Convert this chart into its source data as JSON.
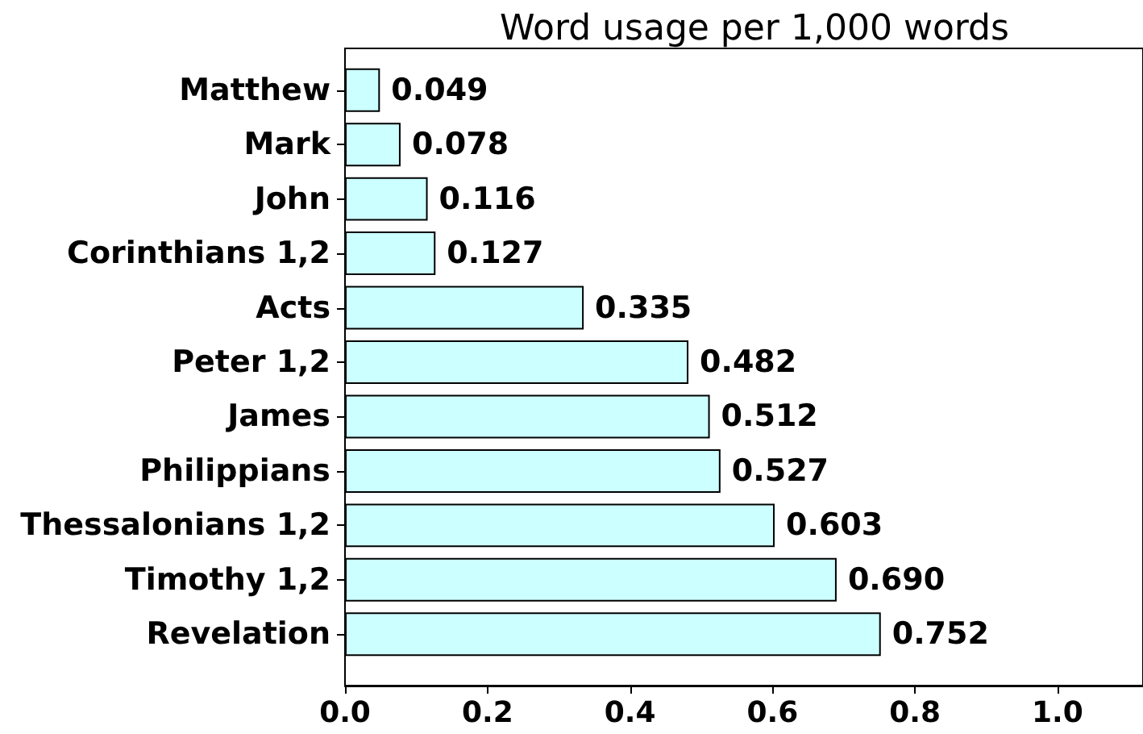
{
  "chart_data": {
    "type": "bar",
    "orientation": "horizontal",
    "title": "Word usage per 1,000 words",
    "categories": [
      "Matthew",
      "Mark",
      "John",
      "Corinthians 1,2",
      "Acts",
      "Peter 1,2",
      "James",
      "Philippians",
      "Thessalonians 1,2",
      "Timothy 1,2",
      "Revelation"
    ],
    "values": [
      0.049,
      0.078,
      0.116,
      0.127,
      0.335,
      0.482,
      0.512,
      0.527,
      0.603,
      0.69,
      0.752
    ],
    "value_labels": [
      "0.049",
      "0.078",
      "0.116",
      "0.127",
      "0.335",
      "0.482",
      "0.512",
      "0.527",
      "0.603",
      "0.690",
      "0.752"
    ],
    "color": "#ccffff",
    "xlim": [
      0,
      1.12
    ],
    "xticks": [
      {
        "value": 0,
        "label": "0.0"
      },
      {
        "value": 0.2,
        "label": "0.2"
      },
      {
        "value": 0.4,
        "label": "0.4"
      },
      {
        "value": 0.6,
        "label": "0.6"
      },
      {
        "value": 0.8,
        "label": "0.8"
      },
      {
        "value": 1.0,
        "label": "1.0"
      }
    ]
  }
}
